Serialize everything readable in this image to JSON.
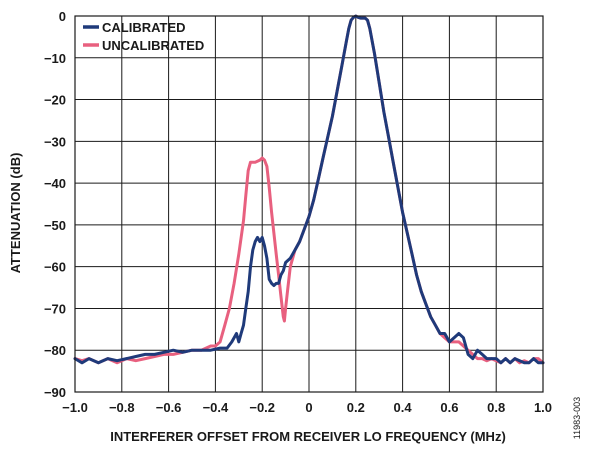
{
  "figure_id": "11983-003",
  "chart_data": {
    "type": "line",
    "xlabel": "INTERFERER OFFSET FROM RECEIVER LO FREQUENCY (MHz)",
    "ylabel": "ATTENUATION (dB)",
    "xlim": [
      -1.0,
      1.0
    ],
    "ylim": [
      -90,
      0
    ],
    "x_ticks": [
      -1.0,
      -0.8,
      -0.6,
      -0.4,
      -0.2,
      0,
      0.2,
      0.4,
      0.6,
      0.8,
      1.0
    ],
    "x_tick_labels": [
      "−1.0",
      "−0.8",
      "−0.6",
      "−0.4",
      "−0.2",
      "0",
      "0.2",
      "0.4",
      "0.6",
      "0.8",
      "1.0"
    ],
    "y_ticks": [
      0,
      -10,
      -20,
      -30,
      -40,
      -50,
      -60,
      -70,
      -80,
      -90
    ],
    "y_tick_labels": [
      "0",
      "−10",
      "−20",
      "−30",
      "−40",
      "−50",
      "−60",
      "−70",
      "−80",
      "−90"
    ],
    "grid": true,
    "legend_position": "top-left",
    "series": [
      {
        "name": "CALIBRATED",
        "color": "#1f3a7a",
        "points": [
          [
            -1.0,
            -82
          ],
          [
            -0.97,
            -83
          ],
          [
            -0.94,
            -82
          ],
          [
            -0.9,
            -83
          ],
          [
            -0.86,
            -82
          ],
          [
            -0.82,
            -82.5
          ],
          [
            -0.78,
            -82
          ],
          [
            -0.74,
            -81.5
          ],
          [
            -0.7,
            -81
          ],
          [
            -0.66,
            -81
          ],
          [
            -0.62,
            -80.5
          ],
          [
            -0.58,
            -80
          ],
          [
            -0.54,
            -80.5
          ],
          [
            -0.5,
            -80
          ],
          [
            -0.46,
            -80
          ],
          [
            -0.42,
            -80
          ],
          [
            -0.38,
            -79.5
          ],
          [
            -0.35,
            -79.5
          ],
          [
            -0.33,
            -78
          ],
          [
            -0.31,
            -76
          ],
          [
            -0.3,
            -78
          ],
          [
            -0.29,
            -76
          ],
          [
            -0.28,
            -74
          ],
          [
            -0.27,
            -70
          ],
          [
            -0.26,
            -66
          ],
          [
            -0.25,
            -60
          ],
          [
            -0.24,
            -56
          ],
          [
            -0.23,
            -54
          ],
          [
            -0.22,
            -53
          ],
          [
            -0.21,
            -54
          ],
          [
            -0.2,
            -53
          ],
          [
            -0.19,
            -55
          ],
          [
            -0.18,
            -58
          ],
          [
            -0.17,
            -63
          ],
          [
            -0.16,
            -64
          ],
          [
            -0.15,
            -64.5
          ],
          [
            -0.14,
            -64
          ],
          [
            -0.13,
            -64
          ],
          [
            -0.12,
            -62
          ],
          [
            -0.11,
            -61
          ],
          [
            -0.1,
            -59
          ],
          [
            -0.08,
            -58
          ],
          [
            -0.06,
            -56
          ],
          [
            -0.04,
            -54
          ],
          [
            -0.02,
            -51
          ],
          [
            0,
            -48
          ],
          [
            0.02,
            -44
          ],
          [
            0.04,
            -39
          ],
          [
            0.06,
            -34
          ],
          [
            0.08,
            -29
          ],
          [
            0.1,
            -24
          ],
          [
            0.12,
            -18
          ],
          [
            0.14,
            -12
          ],
          [
            0.16,
            -6
          ],
          [
            0.17,
            -3
          ],
          [
            0.18,
            -1
          ],
          [
            0.19,
            -0.3
          ],
          [
            0.2,
            0
          ],
          [
            0.21,
            -0.3
          ],
          [
            0.22,
            -0.5
          ],
          [
            0.24,
            -0.5
          ],
          [
            0.25,
            -1
          ],
          [
            0.26,
            -3
          ],
          [
            0.28,
            -9
          ],
          [
            0.3,
            -16
          ],
          [
            0.32,
            -23
          ],
          [
            0.34,
            -29
          ],
          [
            0.36,
            -35
          ],
          [
            0.38,
            -41
          ],
          [
            0.4,
            -47
          ],
          [
            0.42,
            -52
          ],
          [
            0.44,
            -57
          ],
          [
            0.46,
            -62
          ],
          [
            0.48,
            -66
          ],
          [
            0.5,
            -69
          ],
          [
            0.52,
            -72
          ],
          [
            0.54,
            -74
          ],
          [
            0.56,
            -76
          ],
          [
            0.58,
            -76
          ],
          [
            0.6,
            -78
          ],
          [
            0.62,
            -77
          ],
          [
            0.64,
            -76
          ],
          [
            0.66,
            -77
          ],
          [
            0.68,
            -81
          ],
          [
            0.7,
            -82
          ],
          [
            0.72,
            -80
          ],
          [
            0.74,
            -81
          ],
          [
            0.76,
            -82
          ],
          [
            0.78,
            -82
          ],
          [
            0.8,
            -82
          ],
          [
            0.82,
            -83
          ],
          [
            0.84,
            -82
          ],
          [
            0.86,
            -83
          ],
          [
            0.88,
            -82
          ],
          [
            0.9,
            -82.5
          ],
          [
            0.92,
            -83
          ],
          [
            0.94,
            -83
          ],
          [
            0.96,
            -82
          ],
          [
            0.98,
            -83
          ],
          [
            1.0,
            -83
          ]
        ]
      },
      {
        "name": "UNCALIBRATED",
        "color": "#e8607f",
        "points": [
          [
            -1.0,
            -82
          ],
          [
            -0.97,
            -82.5
          ],
          [
            -0.94,
            -82
          ],
          [
            -0.9,
            -83
          ],
          [
            -0.86,
            -82
          ],
          [
            -0.82,
            -83
          ],
          [
            -0.78,
            -82
          ],
          [
            -0.74,
            -82.5
          ],
          [
            -0.7,
            -82
          ],
          [
            -0.66,
            -81.5
          ],
          [
            -0.62,
            -81
          ],
          [
            -0.58,
            -81
          ],
          [
            -0.54,
            -80.5
          ],
          [
            -0.5,
            -80
          ],
          [
            -0.46,
            -80
          ],
          [
            -0.42,
            -79
          ],
          [
            -0.4,
            -79
          ],
          [
            -0.38,
            -78
          ],
          [
            -0.36,
            -74
          ],
          [
            -0.34,
            -70
          ],
          [
            -0.32,
            -64
          ],
          [
            -0.3,
            -57
          ],
          [
            -0.28,
            -49
          ],
          [
            -0.27,
            -43
          ],
          [
            -0.26,
            -37
          ],
          [
            -0.25,
            -35
          ],
          [
            -0.23,
            -35
          ],
          [
            -0.21,
            -34.5
          ],
          [
            -0.2,
            -34
          ],
          [
            -0.19,
            -34.5
          ],
          [
            -0.18,
            -36
          ],
          [
            -0.17,
            -41
          ],
          [
            -0.16,
            -47
          ],
          [
            -0.15,
            -52
          ],
          [
            -0.14,
            -57
          ],
          [
            -0.13,
            -62
          ],
          [
            -0.12,
            -67
          ],
          [
            -0.11,
            -72
          ],
          [
            -0.105,
            -73
          ],
          [
            -0.1,
            -70
          ],
          [
            -0.09,
            -65
          ],
          [
            -0.08,
            -60
          ],
          [
            -0.06,
            -56
          ],
          [
            -0.04,
            -54
          ],
          [
            -0.02,
            -51
          ],
          [
            0,
            -48
          ],
          [
            0.02,
            -44
          ],
          [
            0.04,
            -39
          ],
          [
            0.06,
            -34
          ],
          [
            0.08,
            -29
          ],
          [
            0.1,
            -24
          ],
          [
            0.12,
            -18
          ],
          [
            0.14,
            -12
          ],
          [
            0.16,
            -6
          ],
          [
            0.17,
            -3
          ],
          [
            0.18,
            -1
          ],
          [
            0.19,
            -0.3
          ],
          [
            0.2,
            0
          ],
          [
            0.21,
            -0.3
          ],
          [
            0.22,
            -0.5
          ],
          [
            0.24,
            -0.5
          ],
          [
            0.25,
            -1
          ],
          [
            0.26,
            -3
          ],
          [
            0.28,
            -9
          ],
          [
            0.3,
            -16
          ],
          [
            0.32,
            -23
          ],
          [
            0.34,
            -29
          ],
          [
            0.36,
            -35
          ],
          [
            0.38,
            -41
          ],
          [
            0.4,
            -47
          ],
          [
            0.42,
            -52
          ],
          [
            0.44,
            -57
          ],
          [
            0.46,
            -62
          ],
          [
            0.48,
            -66
          ],
          [
            0.5,
            -69
          ],
          [
            0.52,
            -72
          ],
          [
            0.54,
            -74
          ],
          [
            0.56,
            -76
          ],
          [
            0.58,
            -77
          ],
          [
            0.6,
            -78
          ],
          [
            0.62,
            -78
          ],
          [
            0.64,
            -78
          ],
          [
            0.66,
            -79
          ],
          [
            0.68,
            -80
          ],
          [
            0.7,
            -81
          ],
          [
            0.72,
            -82
          ],
          [
            0.74,
            -82
          ],
          [
            0.76,
            -82.5
          ],
          [
            0.78,
            -82
          ],
          [
            0.8,
            -82.5
          ],
          [
            0.82,
            -83
          ],
          [
            0.84,
            -82
          ],
          [
            0.86,
            -83
          ],
          [
            0.88,
            -82
          ],
          [
            0.9,
            -83
          ],
          [
            0.92,
            -82.5
          ],
          [
            0.94,
            -83
          ],
          [
            0.96,
            -82
          ],
          [
            0.98,
            -82
          ],
          [
            1.0,
            -83
          ]
        ]
      }
    ]
  }
}
